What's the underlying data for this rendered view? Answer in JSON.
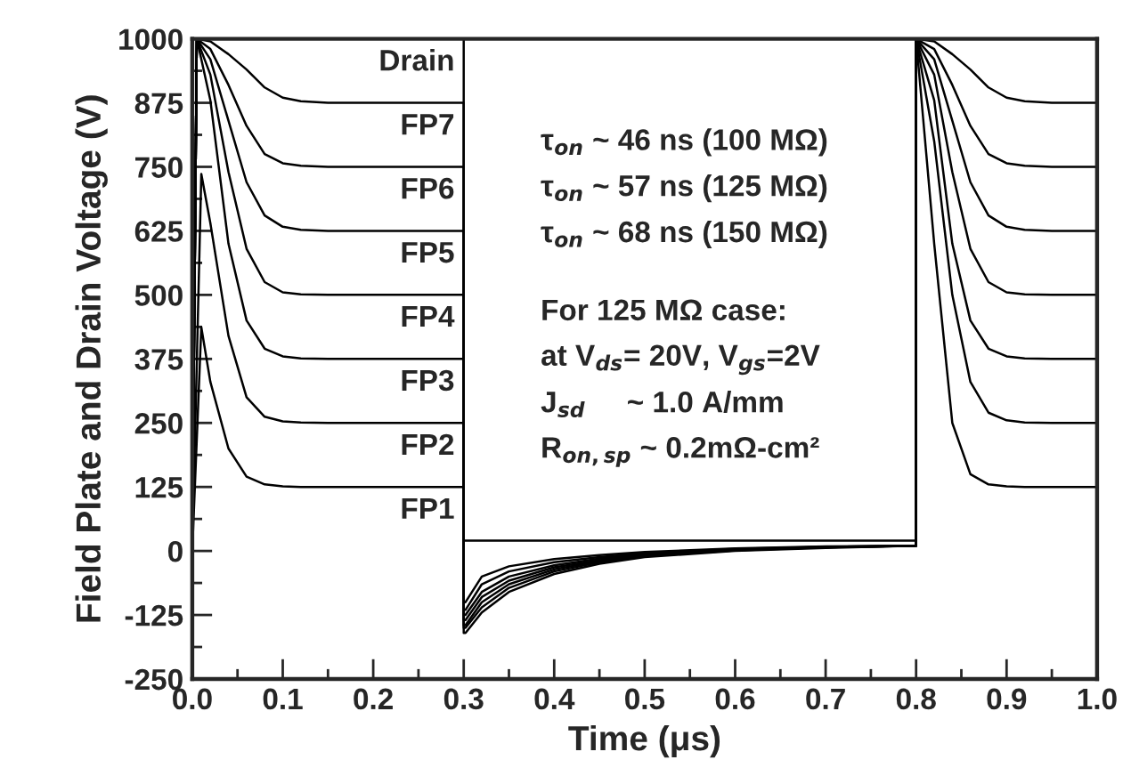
{
  "chart_data": {
    "type": "line",
    "xlabel": "Time (μs)",
    "ylabel": "Field Plate and Drain Voltage (V)",
    "xlim": [
      0,
      1
    ],
    "ylim": [
      -250,
      1000
    ],
    "xticks": [
      {
        "value": 0,
        "label": "0.0"
      },
      {
        "value": 0.1,
        "label": "0.1"
      },
      {
        "value": 0.2,
        "label": "0.2"
      },
      {
        "value": 0.3,
        "label": "0.3"
      },
      {
        "value": 0.4,
        "label": "0.4"
      },
      {
        "value": 0.5,
        "label": "0.5"
      },
      {
        "value": 0.6,
        "label": "0.6"
      },
      {
        "value": 0.7,
        "label": "0.7"
      },
      {
        "value": 0.8,
        "label": "0.8"
      },
      {
        "value": 0.9,
        "label": "0.9"
      },
      {
        "value": 1,
        "label": "1.0"
      }
    ],
    "yticks": [
      -250,
      -125,
      0,
      125,
      250,
      375,
      500,
      625,
      750,
      875,
      1000
    ],
    "grid": false,
    "legend": false,
    "marker": "none",
    "line_style": "solid",
    "series": [
      {
        "name": "Drain",
        "color": "#000000",
        "x": [
          0,
          0.005,
          0.3,
          0.3,
          0.8,
          0.8,
          1.0
        ],
        "values": [
          0,
          1000,
          1000,
          20,
          20,
          1000,
          1000
        ]
      },
      {
        "name": "FP7",
        "color": "#000000",
        "x": [
          0,
          0.005,
          0.02,
          0.04,
          0.06,
          0.08,
          0.1,
          0.12,
          0.15,
          0.3,
          0.3,
          0.302,
          0.32,
          0.35,
          0.4,
          0.45,
          0.5,
          0.6,
          0.7,
          0.8,
          0.8,
          0.82,
          0.84,
          0.86,
          0.88,
          0.9,
          0.92,
          0.95,
          1.0
        ],
        "values": [
          0,
          1000,
          995,
          970,
          940,
          905,
          885,
          878,
          875,
          875,
          -160,
          -160,
          -120,
          -80,
          -45,
          -25,
          -12,
          0,
          6,
          10,
          1000,
          995,
          970,
          940,
          905,
          885,
          878,
          875,
          875
        ]
      },
      {
        "name": "FP6",
        "color": "#000000",
        "x": [
          0,
          0.005,
          0.02,
          0.04,
          0.06,
          0.08,
          0.1,
          0.12,
          0.15,
          0.3,
          0.3,
          0.302,
          0.32,
          0.35,
          0.4,
          0.45,
          0.5,
          0.6,
          0.7,
          0.8,
          0.8,
          0.82,
          0.84,
          0.86,
          0.88,
          0.9,
          0.92,
          0.95,
          1.0
        ],
        "values": [
          0,
          1000,
          980,
          910,
          830,
          775,
          757,
          752,
          750,
          750,
          -150,
          -150,
          -110,
          -72,
          -40,
          -22,
          -10,
          1,
          7,
          10,
          1000,
          980,
          910,
          830,
          775,
          757,
          752,
          750,
          750
        ]
      },
      {
        "name": "FP5",
        "color": "#000000",
        "x": [
          0,
          0.005,
          0.02,
          0.04,
          0.06,
          0.08,
          0.1,
          0.12,
          0.15,
          0.3,
          0.3,
          0.302,
          0.32,
          0.35,
          0.4,
          0.45,
          0.5,
          0.6,
          0.7,
          0.8,
          0.8,
          0.82,
          0.84,
          0.86,
          0.88,
          0.9,
          0.92,
          0.95,
          1.0
        ],
        "values": [
          0,
          1000,
          960,
          840,
          720,
          655,
          633,
          627,
          625,
          625,
          -145,
          -145,
          -100,
          -65,
          -36,
          -20,
          -9,
          2,
          7,
          10,
          1000,
          960,
          840,
          720,
          655,
          633,
          627,
          625,
          625
        ]
      },
      {
        "name": "FP4",
        "color": "#000000",
        "x": [
          0,
          0.005,
          0.02,
          0.04,
          0.06,
          0.08,
          0.1,
          0.12,
          0.15,
          0.3,
          0.3,
          0.302,
          0.32,
          0.35,
          0.4,
          0.45,
          0.5,
          0.6,
          0.7,
          0.8,
          0.8,
          0.82,
          0.84,
          0.86,
          0.88,
          0.9,
          0.92,
          0.95,
          1.0
        ],
        "values": [
          0,
          1000,
          930,
          740,
          590,
          525,
          505,
          501,
          500,
          500,
          -135,
          -135,
          -90,
          -58,
          -32,
          -18,
          -8,
          2,
          8,
          10,
          1000,
          930,
          740,
          590,
          525,
          505,
          501,
          500,
          500
        ]
      },
      {
        "name": "FP3",
        "color": "#000000",
        "x": [
          0,
          0.005,
          0.02,
          0.04,
          0.06,
          0.08,
          0.1,
          0.12,
          0.15,
          0.3,
          0.3,
          0.302,
          0.32,
          0.35,
          0.4,
          0.45,
          0.5,
          0.6,
          0.7,
          0.8,
          0.8,
          0.82,
          0.84,
          0.86,
          0.88,
          0.9,
          0.92,
          0.95,
          1.0
        ],
        "values": [
          0,
          1000,
          880,
          600,
          450,
          395,
          380,
          376,
          375,
          375,
          -125,
          -125,
          -80,
          -50,
          -28,
          -15,
          -6,
          3,
          8,
          10,
          1000,
          880,
          600,
          450,
          395,
          380,
          376,
          375,
          375
        ]
      },
      {
        "name": "FP2",
        "color": "#000000",
        "x": [
          0,
          0.01,
          0.02,
          0.04,
          0.06,
          0.08,
          0.1,
          0.12,
          0.15,
          0.3,
          0.3,
          0.302,
          0.32,
          0.35,
          0.4,
          0.45,
          0.5,
          0.6,
          0.7,
          0.8,
          0.8,
          0.82,
          0.84,
          0.86,
          0.88,
          0.9,
          0.92,
          0.95,
          1.0
        ],
        "values": [
          0,
          736,
          640,
          420,
          300,
          262,
          253,
          251,
          250,
          250,
          -115,
          -115,
          -65,
          -40,
          -22,
          -12,
          -4,
          4,
          8,
          10,
          1000,
          800,
          500,
          330,
          270,
          255,
          251,
          250,
          250
        ]
      },
      {
        "name": "FP1",
        "color": "#000000",
        "x": [
          0,
          0.01,
          0.02,
          0.04,
          0.06,
          0.08,
          0.1,
          0.12,
          0.15,
          0.3,
          0.3,
          0.302,
          0.32,
          0.35,
          0.4,
          0.45,
          0.5,
          0.6,
          0.7,
          0.8,
          0.8,
          0.82,
          0.84,
          0.86,
          0.88,
          0.9,
          0.92,
          0.95,
          1.0
        ],
        "values": [
          0,
          437,
          330,
          200,
          145,
          130,
          126,
          125,
          125,
          125,
          -100,
          -100,
          -50,
          -30,
          -16,
          -8,
          -2,
          5,
          9,
          10,
          1000,
          600,
          250,
          150,
          130,
          126,
          125,
          125,
          125
        ]
      }
    ],
    "annotations": [
      "τ$_{on}$ ~ 46 ns (100 MΩ)",
      "τ$_{on}$ ~ 57 ns (125 MΩ)",
      "τ$_{on}$ ~ 68 ns (150 MΩ)",
      "For 125 MΩ case:",
      "at V$_{ds}$= 20V, V$_{gs}$=2V",
      "J$_{sd}$     ~ 1.0 A/mm",
      "R$_{on,sp}$ ~ 0.2mΩ-cm²"
    ]
  }
}
